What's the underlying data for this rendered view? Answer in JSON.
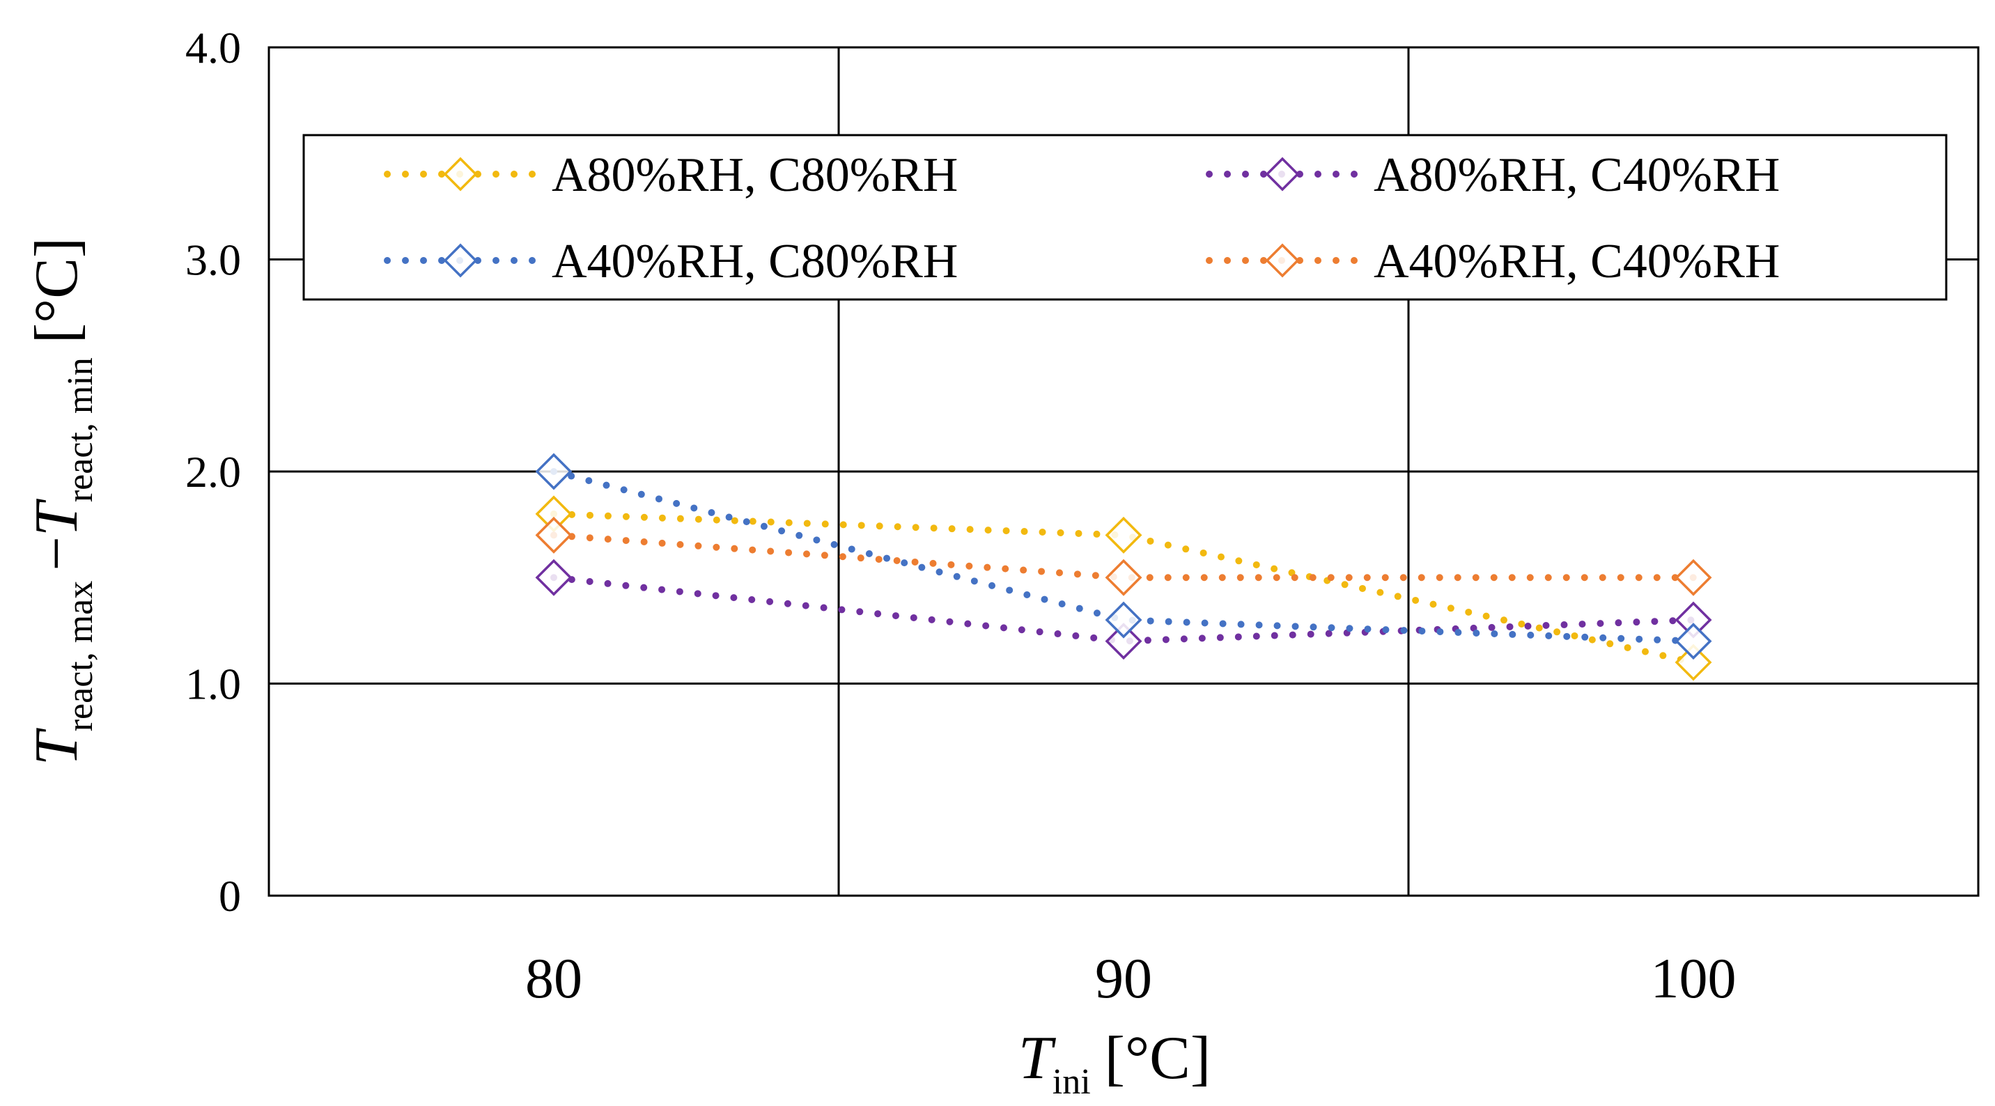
{
  "chart_data": {
    "type": "line",
    "title": "",
    "xlabel": {
      "symbol": "T",
      "subscript": "ini",
      "unit": "[°C]"
    },
    "ylabel": {
      "symbol1": "T",
      "subscript1": "react, max",
      "operator": "−",
      "symbol2": "T",
      "subscript2": "react, min",
      "unit": "[°C]"
    },
    "x": [
      80,
      90,
      100
    ],
    "x_tick_labels": [
      "80",
      "90",
      "100"
    ],
    "xlim": [
      75,
      105
    ],
    "ylim": [
      0,
      4.0
    ],
    "y_ticks": [
      0,
      1.0,
      2.0,
      3.0,
      4.0
    ],
    "y_tick_labels": [
      "0",
      "1.0",
      "2.0",
      "3.0",
      "4.0"
    ],
    "grid": true,
    "legend_position": "top",
    "series": [
      {
        "name": "A80%RH, C80%RH",
        "color": "#F2B90F",
        "marker": "open-diamond",
        "line": "dotted",
        "values": [
          1.8,
          1.7,
          1.1
        ]
      },
      {
        "name": "A80%RH, C40%RH",
        "color": "#7030A0",
        "marker": "open-diamond",
        "line": "dotted",
        "values": [
          1.5,
          1.2,
          1.3
        ]
      },
      {
        "name": "A40%RH, C80%RH",
        "color": "#4472C4",
        "marker": "open-diamond",
        "line": "dotted",
        "values": [
          2.0,
          1.3,
          1.2
        ]
      },
      {
        "name": "A40%RH, C40%RH",
        "color": "#ED7D31",
        "marker": "open-diamond",
        "line": "dotted",
        "values": [
          1.7,
          1.5,
          1.5
        ]
      }
    ]
  }
}
